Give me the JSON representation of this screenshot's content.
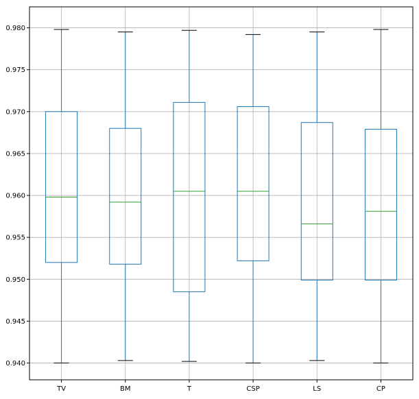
{
  "chart_data": {
    "type": "box",
    "title": "",
    "xlabel": "",
    "ylabel": "",
    "ylim": [
      0.938,
      0.9825
    ],
    "yticks": [
      0.94,
      0.945,
      0.95,
      0.955,
      0.96,
      0.965,
      0.97,
      0.975,
      0.98
    ],
    "ytick_labels": [
      "0.940",
      "0.945",
      "0.950",
      "0.955",
      "0.960",
      "0.965",
      "0.970",
      "0.975",
      "0.980"
    ],
    "grid": true,
    "categories": [
      "TV",
      "BM",
      "T",
      "CSP",
      "LS",
      "CP"
    ],
    "boxes": [
      {
        "label": "TV",
        "whislo": 0.94,
        "q1": 0.952,
        "med": 0.9598,
        "q3": 0.97,
        "whishi": 0.9798
      },
      {
        "label": "BM",
        "whislo": 0.9403,
        "q1": 0.9518,
        "med": 0.9592,
        "q3": 0.968,
        "whishi": 0.9795
      },
      {
        "label": "T",
        "whislo": 0.9402,
        "q1": 0.9485,
        "med": 0.9605,
        "q3": 0.9711,
        "whishi": 0.9797
      },
      {
        "label": "CSP",
        "whislo": 0.94,
        "q1": 0.9522,
        "med": 0.9605,
        "q3": 0.9706,
        "whishi": 0.9792
      },
      {
        "label": "LS",
        "whislo": 0.9403,
        "q1": 0.9499,
        "med": 0.9566,
        "q3": 0.9687,
        "whishi": 0.9795
      },
      {
        "label": "CP",
        "whislo": 0.94,
        "q1": 0.9499,
        "med": 0.9581,
        "q3": 0.9679,
        "whishi": 0.9798
      }
    ],
    "colors": {
      "box": "#1f77b4",
      "median": "#2ca02c",
      "whisker": "#1f77b4",
      "cap": "#000000",
      "grid": "#b0b0b0",
      "axes": "#000000"
    }
  }
}
